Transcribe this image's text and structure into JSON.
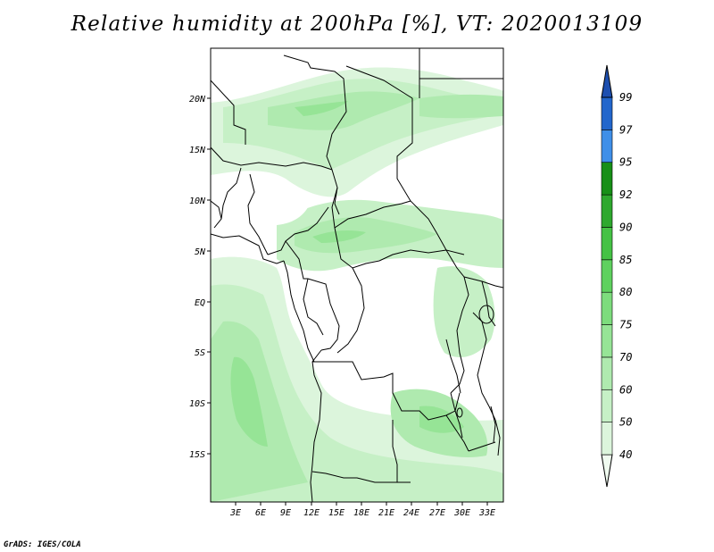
{
  "title": "Relative humidity at 200hPa [%], VT: 2020013109",
  "credit": "GrADS: IGES/COLA",
  "map": {
    "lat_labels": [
      "20N",
      "15N",
      "10N",
      "5N",
      "EQ",
      "5S",
      "10S",
      "15S"
    ],
    "lon_labels": [
      "3E",
      "6E",
      "9E",
      "12E",
      "15E",
      "18E",
      "21E",
      "24E",
      "27E",
      "30E",
      "33E"
    ]
  },
  "colorbar": {
    "levels": [
      "40",
      "50",
      "60",
      "70",
      "75",
      "80",
      "85",
      "90",
      "92",
      "95",
      "97",
      "99"
    ],
    "colors": [
      "#f0fbf0",
      "#dcf5dc",
      "#c6f0c6",
      "#afeaaf",
      "#96e496",
      "#7ddc7d",
      "#5fd15f",
      "#45c245",
      "#2ea82e",
      "#178f17",
      "#3f8fe8",
      "#2266cc",
      "#1d4fb0"
    ]
  }
}
